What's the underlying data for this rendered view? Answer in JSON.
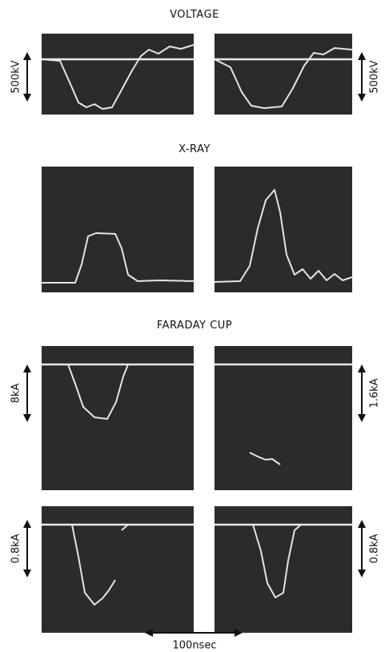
{
  "voltage": {
    "title": "VOLTAGE",
    "left_scale": "500kV",
    "right_scale": "500kV"
  },
  "x_ray": {
    "title": "X-RAY"
  },
  "faraday_cup": {
    "title": "FARADAY CUP",
    "rows": [
      {
        "left_scale": "8kA",
        "right_scale": "1.6kA"
      },
      {
        "left_scale": "0.8kA",
        "right_scale": "0.8kA"
      }
    ]
  },
  "time_scale": "100nsec"
}
